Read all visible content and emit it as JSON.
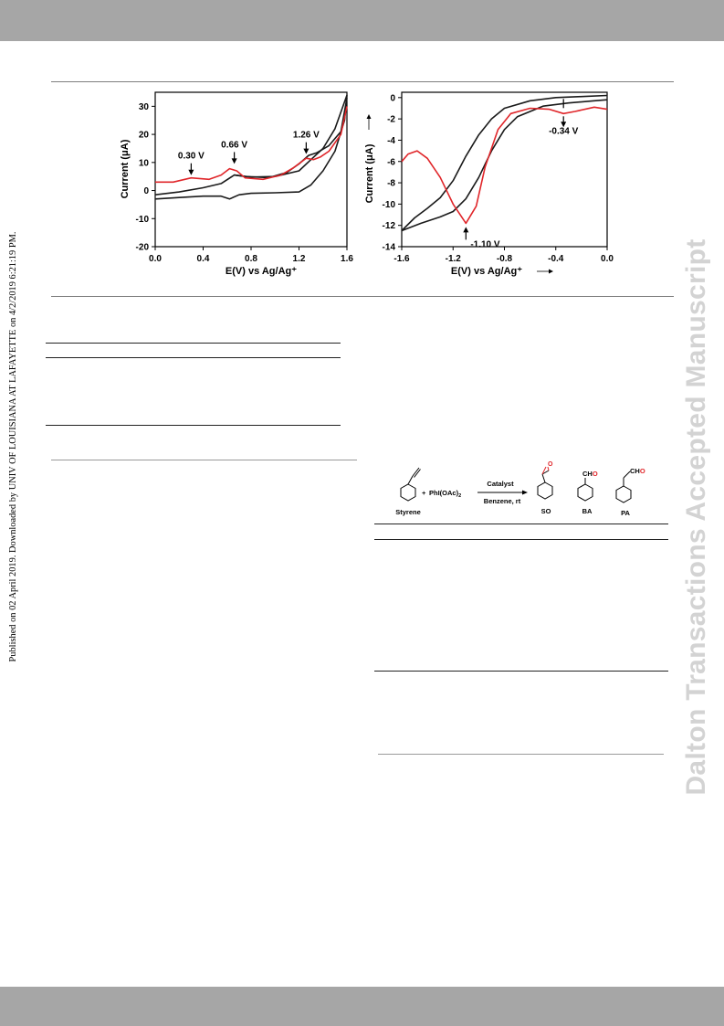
{
  "side_note": "Published on 02 April 2019. Downloaded by UNIV OF LOUISIANA AT LAFAYETTE on 4/2/2019 6:21:19 PM.",
  "watermark": "Dalton Transactions Accepted Manuscript",
  "chart_data": [
    {
      "type": "line",
      "ylabel": "Current (μA)",
      "xlabel": "E(V) vs Ag/Ag⁺",
      "xlim": [
        0.0,
        1.6
      ],
      "ylim": [
        -20,
        35
      ],
      "x_ticks": [
        "0.0",
        "0.4",
        "0.8",
        "1.2",
        "1.6"
      ],
      "y_ticks": [
        "-20",
        "-10",
        "0",
        "10",
        "20",
        "30"
      ],
      "annotations": [
        {
          "text": "0.30 V",
          "x": 0.3,
          "y": 4.5
        },
        {
          "text": "0.66 V",
          "x": 0.66,
          "y": 8.5
        },
        {
          "text": "1.26 V",
          "x": 1.26,
          "y": 12.0
        }
      ],
      "series": [
        {
          "color": "#1a1a1a",
          "points": [
            [
              0.0,
              -1.5
            ],
            [
              0.2,
              -0.5
            ],
            [
              0.4,
              1.0
            ],
            [
              0.55,
              2.5
            ],
            [
              0.66,
              5.5
            ],
            [
              0.8,
              4.8
            ],
            [
              1.0,
              5.0
            ],
            [
              1.2,
              7.0
            ],
            [
              1.3,
              11.0
            ],
            [
              1.4,
              15.0
            ],
            [
              1.5,
              22.0
            ],
            [
              1.6,
              34.0
            ],
            [
              1.58,
              25.0
            ],
            [
              1.5,
              14.0
            ],
            [
              1.4,
              7.0
            ],
            [
              1.3,
              2.0
            ],
            [
              1.2,
              -0.5
            ],
            [
              1.0,
              -0.8
            ],
            [
              0.8,
              -1.0
            ],
            [
              0.7,
              -1.5
            ],
            [
              0.62,
              -3.0
            ],
            [
              0.55,
              -2.0
            ],
            [
              0.4,
              -2.0
            ],
            [
              0.2,
              -2.5
            ],
            [
              0.0,
              -3.0
            ]
          ]
        },
        {
          "color": "#1a1a1a",
          "points": [
            [
              0.66,
              5.5
            ],
            [
              0.75,
              5.0
            ],
            [
              0.95,
              4.6
            ],
            [
              1.1,
              6.5
            ],
            [
              1.2,
              9.5
            ],
            [
              1.28,
              12.5
            ],
            [
              1.35,
              13.5
            ],
            [
              1.45,
              16.0
            ],
            [
              1.55,
              21.0
            ],
            [
              1.6,
              33.0
            ]
          ]
        },
        {
          "color": "#e0262a",
          "points": [
            [
              0.0,
              3.0
            ],
            [
              0.15,
              3.0
            ],
            [
              0.3,
              4.5
            ],
            [
              0.45,
              4.0
            ],
            [
              0.55,
              5.5
            ],
            [
              0.62,
              7.8
            ],
            [
              0.68,
              7.0
            ],
            [
              0.75,
              4.5
            ],
            [
              0.9,
              4.0
            ],
            [
              1.05,
              5.5
            ],
            [
              1.15,
              8.0
            ],
            [
              1.26,
              11.5
            ],
            [
              1.32,
              11.0
            ],
            [
              1.38,
              12.0
            ],
            [
              1.45,
              14.0
            ],
            [
              1.55,
              20.0
            ],
            [
              1.6,
              30.0
            ]
          ]
        }
      ]
    },
    {
      "type": "line",
      "ylabel": "Current (μA)",
      "xlabel": "E(V) vs Ag/Ag⁺",
      "xlim": [
        -1.6,
        0.0
      ],
      "ylim": [
        -14,
        0.5
      ],
      "x_ticks": [
        "-1.6",
        "-1.2",
        "-0.8",
        "-0.4",
        "0.0"
      ],
      "y_ticks": [
        "-14",
        "-12",
        "-10",
        "-8",
        "-6",
        "-4",
        "-2",
        "0"
      ],
      "annotations": [
        {
          "text": "-1.10 V",
          "x": -1.1,
          "y": -11.8
        },
        {
          "text": "-0.34 V",
          "x": -0.34,
          "y": -1.5
        }
      ],
      "series": [
        {
          "color": "#1a1a1a",
          "points": [
            [
              -1.6,
              -12.5
            ],
            [
              -1.5,
              -11.3
            ],
            [
              -1.4,
              -10.4
            ],
            [
              -1.3,
              -9.4
            ],
            [
              -1.2,
              -7.8
            ],
            [
              -1.1,
              -5.5
            ],
            [
              -1.0,
              -3.5
            ],
            [
              -0.9,
              -2.0
            ],
            [
              -0.8,
              -1.0
            ],
            [
              -0.6,
              -0.3
            ],
            [
              -0.4,
              0.0
            ],
            [
              -0.2,
              0.1
            ],
            [
              0.0,
              0.2
            ]
          ]
        },
        {
          "color": "#1a1a1a",
          "points": [
            [
              -1.6,
              -12.5
            ],
            [
              -1.45,
              -11.8
            ],
            [
              -1.3,
              -11.2
            ],
            [
              -1.2,
              -10.7
            ],
            [
              -1.1,
              -9.5
            ],
            [
              -1.0,
              -7.5
            ],
            [
              -0.9,
              -5.0
            ],
            [
              -0.8,
              -3.0
            ],
            [
              -0.7,
              -1.8
            ],
            [
              -0.5,
              -0.8
            ],
            [
              -0.3,
              -0.5
            ],
            [
              -0.1,
              -0.3
            ],
            [
              0.0,
              -0.2
            ]
          ]
        },
        {
          "color": "#e0262a",
          "points": [
            [
              -1.6,
              -6.0
            ],
            [
              -1.55,
              -5.3
            ],
            [
              -1.48,
              -5.0
            ],
            [
              -1.4,
              -5.7
            ],
            [
              -1.3,
              -7.5
            ],
            [
              -1.2,
              -10.0
            ],
            [
              -1.1,
              -11.8
            ],
            [
              -1.02,
              -10.2
            ],
            [
              -0.95,
              -6.5
            ],
            [
              -0.85,
              -3.0
            ],
            [
              -0.75,
              -1.5
            ],
            [
              -0.6,
              -1.0
            ],
            [
              -0.45,
              -1.1
            ],
            [
              -0.34,
              -1.5
            ],
            [
              -0.25,
              -1.3
            ],
            [
              -0.1,
              -0.9
            ],
            [
              0.0,
              -1.1
            ]
          ]
        }
      ]
    }
  ],
  "scheme": {
    "reagent": "PhI(OAc)",
    "reagent_sub": "2",
    "plus": "+",
    "arrow_top": "Catalyst",
    "arrow_bottom": "Benzene, rt",
    "labels": {
      "styrene": "Styrene",
      "so": "SO",
      "ba": "BA",
      "pa": "PA"
    },
    "o_label": "O",
    "cho_ch": "CH",
    "cho_o": "O",
    "accent_color": "#e0262a"
  }
}
